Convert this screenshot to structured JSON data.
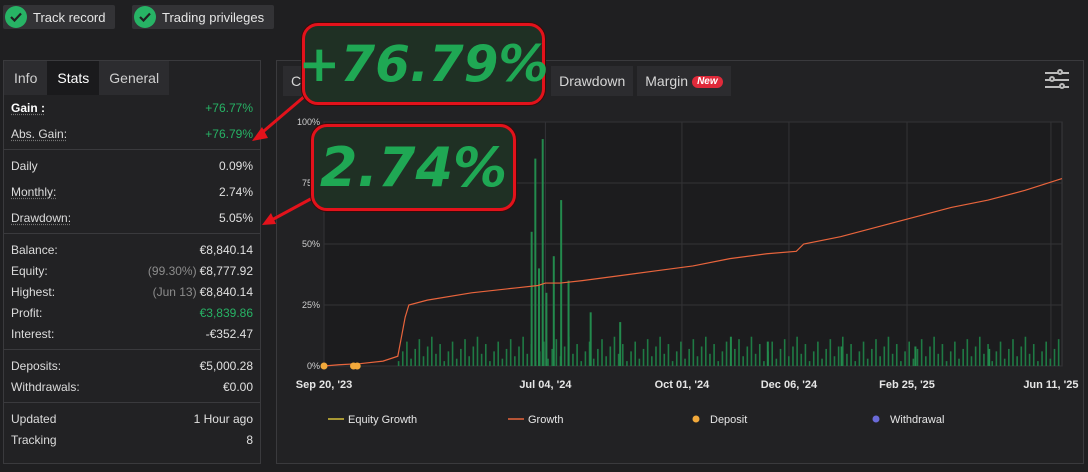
{
  "badges": [
    {
      "label": "Track record",
      "color": "#27b365"
    },
    {
      "label": "Trading privileges",
      "color": "#27b365"
    }
  ],
  "stats": {
    "tabs": [
      "Info",
      "Stats",
      "General"
    ],
    "active_tab": "Stats",
    "rows": {
      "gain": {
        "label": "Gain :",
        "value": "+76.77%"
      },
      "abs_gain": {
        "label": "Abs. Gain:",
        "value": "+76.79%"
      },
      "daily": {
        "label": "Daily",
        "value": "0.09%"
      },
      "monthly": {
        "label": "Monthly:",
        "value": "2.74%"
      },
      "drawdown": {
        "label": "Drawdown:",
        "value": "5.05%"
      },
      "balance": {
        "label": "Balance:",
        "value": "€8,840.14"
      },
      "equity": {
        "label": "Equity:",
        "sub": "(99.30%)",
        "value": "€8,777.92"
      },
      "highest": {
        "label": "Highest:",
        "sub": "(Jun 13)",
        "value": "€8,840.14"
      },
      "profit": {
        "label": "Profit:",
        "value": "€3,839.86"
      },
      "interest": {
        "label": "Interest:",
        "value": "-€352.47"
      },
      "deposits": {
        "label": "Deposits:",
        "value": "€5,000.28"
      },
      "withdrawals": {
        "label": "Withdrawals:",
        "value": "€0.00"
      },
      "updated": {
        "label": "Updated",
        "value": "1 Hour ago"
      },
      "tracking": {
        "label": "Tracking",
        "value": "8"
      }
    }
  },
  "chart_tabs": {
    "first": "C",
    "drawdown": "Drawdown",
    "margin": "Margin",
    "new_badge": "New"
  },
  "callouts": {
    "gain": "+76.79%",
    "monthly": "2.74%"
  },
  "colors": {
    "green": "#27b365",
    "growth_line": "#e8643c",
    "equity_line": "#d4c03a",
    "deposit": "#f2a93b",
    "withdrawal": "#6a6ad8",
    "callout_border": "#e3121b"
  },
  "chart_data": {
    "type": "line",
    "y_ticks": [
      "0%",
      "25%",
      "50%",
      "75%",
      "100%"
    ],
    "ylim": [
      0,
      100
    ],
    "x_ticks": [
      "Sep 20, '23",
      "Jul 04, '24",
      "Oct 01, '24",
      "Dec 06, '24",
      "Feb 25, '25",
      "Jun 11, '25"
    ],
    "x_tick_positions": [
      0,
      0.3,
      0.485,
      0.63,
      0.79,
      0.985
    ],
    "legend": [
      "Equity Growth",
      "Growth",
      "Deposit",
      "Withdrawal"
    ],
    "legend_position": "bottom",
    "series": [
      {
        "name": "Growth",
        "x": [
          0,
          0.02,
          0.05,
          0.08,
          0.1,
          0.105,
          0.11,
          0.115,
          0.14,
          0.2,
          0.26,
          0.29,
          0.3,
          0.32,
          0.35,
          0.4,
          0.45,
          0.5,
          0.55,
          0.6,
          0.64,
          0.65,
          0.7,
          0.75,
          0.8,
          0.85,
          0.9,
          0.95,
          1.0
        ],
        "values": [
          0,
          0.5,
          1,
          2,
          4,
          12,
          20,
          25,
          27,
          30,
          32,
          33,
          34,
          34,
          35,
          37,
          39,
          41,
          44,
          46,
          47,
          50,
          53,
          57,
          61,
          65,
          68,
          72,
          76.8
        ]
      }
    ],
    "volume_bars": [
      {
        "x": 0.28,
        "value": 55
      },
      {
        "x": 0.285,
        "value": 85
      },
      {
        "x": 0.29,
        "value": 40
      },
      {
        "x": 0.295,
        "value": 93
      },
      {
        "x": 0.3,
        "value": 30
      },
      {
        "x": 0.31,
        "value": 45
      },
      {
        "x": 0.32,
        "value": 68
      },
      {
        "x": 0.33,
        "value": 35
      },
      {
        "x": 0.36,
        "value": 22
      },
      {
        "x": 0.4,
        "value": 18
      },
      {
        "x": 0.55,
        "value": 12
      },
      {
        "x": 0.6,
        "value": 10
      },
      {
        "x": 0.7,
        "value": 8
      },
      {
        "x": 0.8,
        "value": 8
      },
      {
        "x": 0.9,
        "value": 7
      }
    ],
    "deposits": [
      0,
      0.04,
      0.045
    ]
  }
}
